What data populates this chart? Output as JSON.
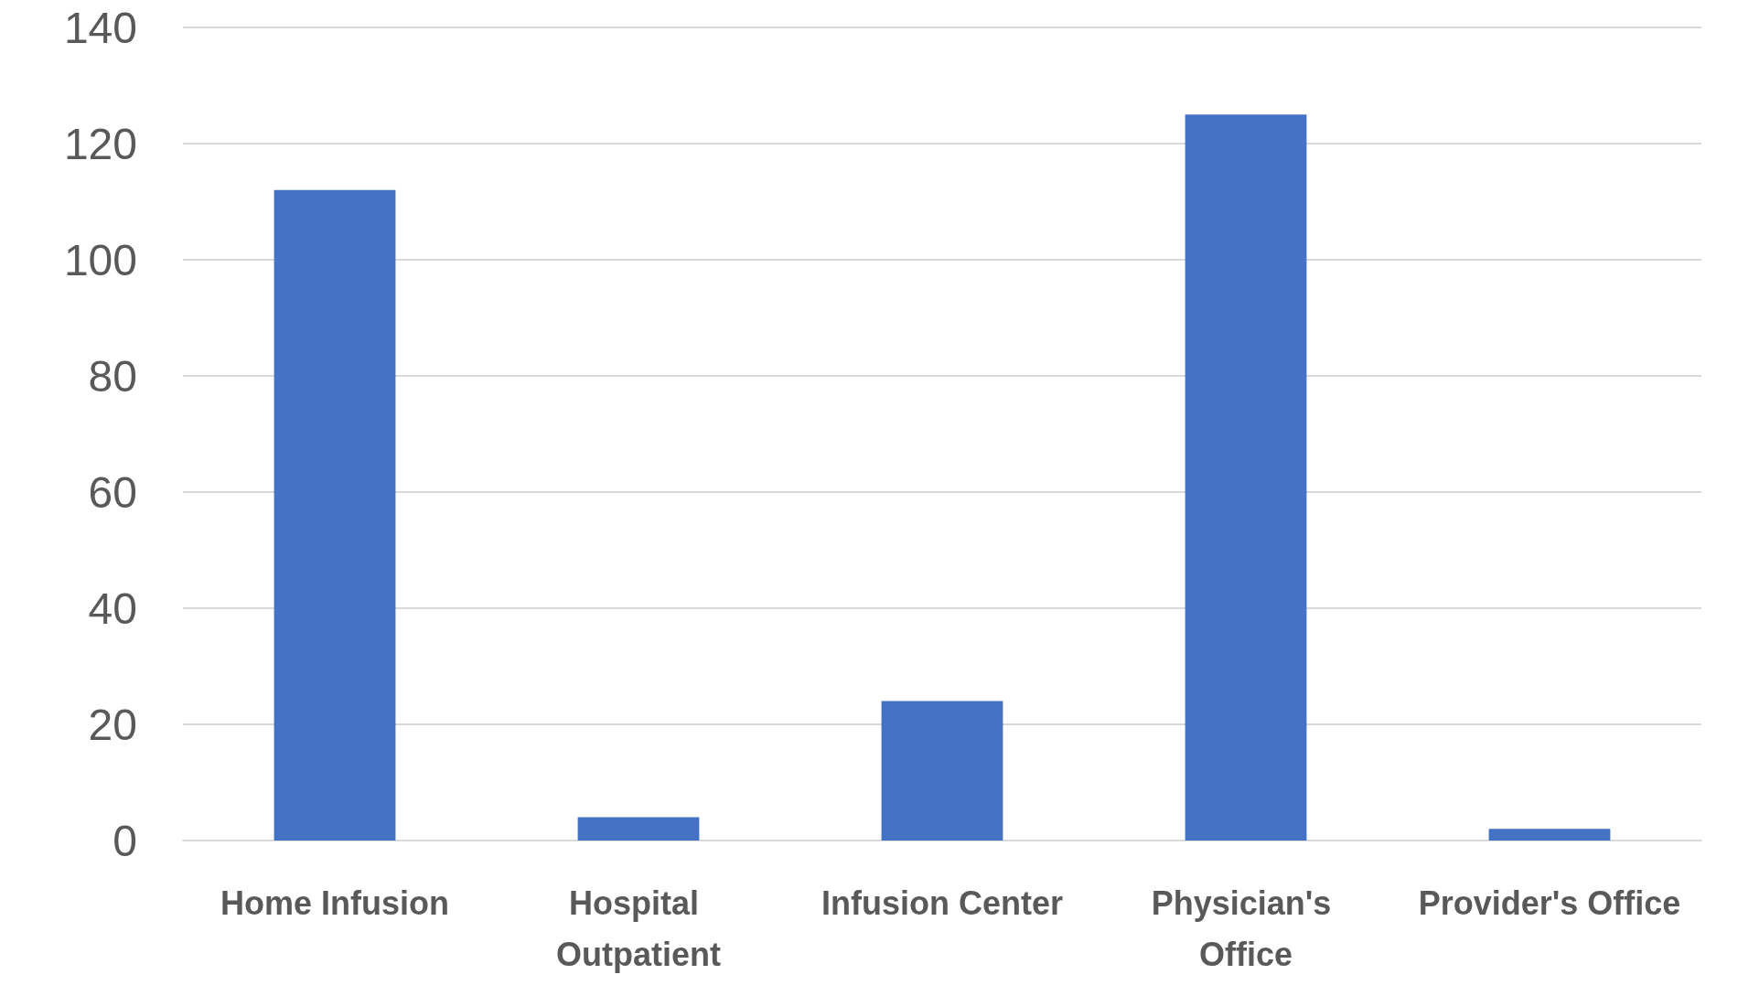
{
  "chart_data": {
    "type": "bar",
    "categories": [
      "Home Infusion",
      "Hospital Outpatient",
      "Infusion Center",
      "Physician's Office",
      "Provider's Office"
    ],
    "values": [
      112,
      4,
      24,
      125,
      2
    ],
    "color": "#4472c4",
    "ylim": [
      0,
      140
    ],
    "yticks": [
      0,
      20,
      40,
      60,
      80,
      100,
      120,
      140
    ],
    "grid": "y"
  }
}
